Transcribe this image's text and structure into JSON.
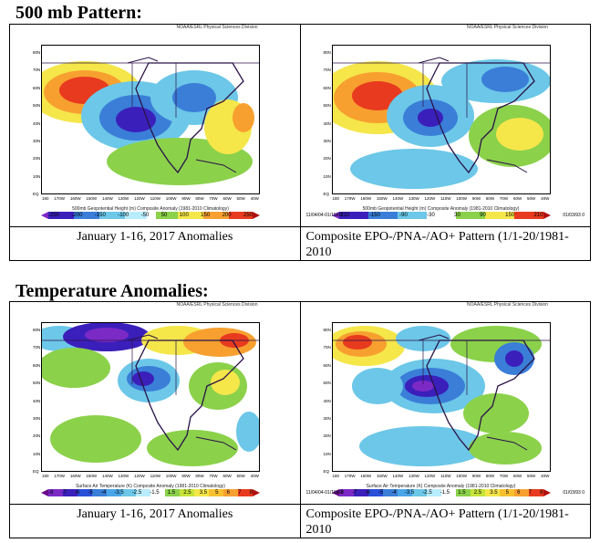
{
  "sections": [
    {
      "title": "500 mb  Pattern:",
      "panels": [
        {
          "header": "NOAA/ESRL Physical Sciences Division",
          "figure_caption": "500mb Geopotential Height (m) Composite Anomaly (1981-2010 Climatology)",
          "colorbar_ticks": [
            "-250",
            "-200",
            "-150",
            "-100",
            "-50",
            "50",
            "100",
            "150",
            "200",
            "250"
          ],
          "caption": "January 1-16, 2017 Anomalies"
        },
        {
          "header": "NOAA/ESRL Physical Sciences Division",
          "figure_caption": "500mb Geopotential Height (m) Composite Anomaly (1981-2010 Climatology)",
          "colorbar_ticks": [
            "-210",
            "-150",
            "-90",
            "-30",
            "30",
            "90",
            "150",
            "210"
          ],
          "date_left": "11/04/04-01/15/03",
          "date_right": "01/03/93 0",
          "caption": "Composite EPO-/PNA-/AO+ Pattern (1/1-20/1981-2010"
        }
      ]
    },
    {
      "title": "Temperature  Anomalies:",
      "panels": [
        {
          "header": "NOAA/ESRL Physical Sciences Division",
          "figure_caption": "Surface Air Temperature (K) Composite Anomaly (1981-2010 Climatology)",
          "colorbar_ticks": [
            "-8",
            "-7",
            "-6",
            "-5",
            "-4",
            "-3.5",
            "-2.5",
            "-1.5",
            "1.5",
            "2.5",
            "3.5",
            "5",
            "6",
            "7",
            "8"
          ],
          "caption": "January 1-16, 2017 Anomalies"
        },
        {
          "header": "NOAA/ESRL Physical Sciences Division",
          "figure_caption": "Surface Air Temperature (K) Composite Anomaly (1981-2010 Climatology)",
          "colorbar_ticks": [
            "-8",
            "-7",
            "-6",
            "-5",
            "-4",
            "-3.5",
            "-2.5",
            "-1.5",
            "1.5",
            "2.5",
            "3.5",
            "5",
            "6",
            "7",
            "8"
          ],
          "date_left": "11/04/04-01/15/03",
          "date_right": "01/03/93 0",
          "caption": "Composite EPO-/PNA-/AO+ Pattern (1/1-20/1981-2010"
        }
      ]
    }
  ],
  "lat_labels": [
    "80N",
    "70N",
    "60N",
    "50N",
    "40N",
    "30N",
    "20N",
    "10N",
    "EQ"
  ],
  "lon_labels": [
    "180",
    "170W",
    "160W",
    "150W",
    "140W",
    "130W",
    "120W",
    "110W",
    "100W",
    "90W",
    "80W",
    "70W",
    "60W",
    "50W",
    "40W"
  ]
}
